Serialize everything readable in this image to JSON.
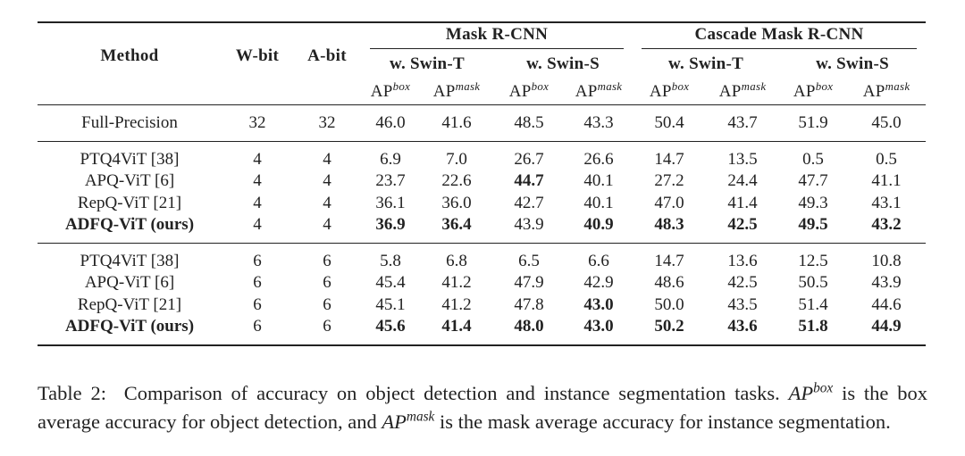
{
  "table": {
    "headers": {
      "method": "Method",
      "w_bit": "W-bit",
      "a_bit": "A-bit",
      "groups": [
        {
          "label": "Mask R-CNN",
          "backbones": [
            "w. Swin-T",
            "w. Swin-S"
          ]
        },
        {
          "label": "Cascade Mask R-CNN",
          "backbones": [
            "w. Swin-T",
            "w. Swin-S"
          ]
        }
      ],
      "metrics": [
        {
          "base": "AP",
          "sup": "box"
        },
        {
          "base": "AP",
          "sup": "mask"
        },
        {
          "base": "AP",
          "sup": "box"
        },
        {
          "base": "AP",
          "sup": "mask"
        },
        {
          "base": "AP",
          "sup": "box"
        },
        {
          "base": "AP",
          "sup": "mask"
        },
        {
          "base": "AP",
          "sup": "box"
        },
        {
          "base": "AP",
          "sup": "mask"
        }
      ]
    },
    "sections": [
      [
        {
          "cells": [
            "Full-Precision",
            "32",
            "32",
            "46.0",
            "41.6",
            "48.5",
            "43.3",
            "50.4",
            "43.7",
            "51.9",
            "45.0"
          ],
          "bold": []
        }
      ],
      [
        {
          "cells": [
            "PTQ4ViT [38]",
            "4",
            "4",
            "6.9",
            "7.0",
            "26.7",
            "26.6",
            "14.7",
            "13.5",
            "0.5",
            "0.5"
          ],
          "bold": []
        },
        {
          "cells": [
            "APQ-ViT [6]",
            "4",
            "4",
            "23.7",
            "22.6",
            "44.7",
            "40.1",
            "27.2",
            "24.4",
            "47.7",
            "41.1"
          ],
          "bold": [
            5
          ]
        },
        {
          "cells": [
            "RepQ-ViT [21]",
            "4",
            "4",
            "36.1",
            "36.0",
            "42.7",
            "40.1",
            "47.0",
            "41.4",
            "49.3",
            "43.1"
          ],
          "bold": []
        },
        {
          "cells": [
            "ADFQ-ViT (ours)",
            "4",
            "4",
            "36.9",
            "36.4",
            "43.9",
            "40.9",
            "48.3",
            "42.5",
            "49.5",
            "43.2"
          ],
          "bold": [
            0,
            3,
            4,
            6,
            7,
            8,
            9,
            10
          ]
        }
      ],
      [
        {
          "cells": [
            "PTQ4ViT [38]",
            "6",
            "6",
            "5.8",
            "6.8",
            "6.5",
            "6.6",
            "14.7",
            "13.6",
            "12.5",
            "10.8"
          ],
          "bold": []
        },
        {
          "cells": [
            "APQ-ViT [6]",
            "6",
            "6",
            "45.4",
            "41.2",
            "47.9",
            "42.9",
            "48.6",
            "42.5",
            "50.5",
            "43.9"
          ],
          "bold": []
        },
        {
          "cells": [
            "RepQ-ViT [21]",
            "6",
            "6",
            "45.1",
            "41.2",
            "47.8",
            "43.0",
            "50.0",
            "43.5",
            "51.4",
            "44.6"
          ],
          "bold": [
            6
          ]
        },
        {
          "cells": [
            "ADFQ-ViT (ours)",
            "6",
            "6",
            "45.6",
            "41.4",
            "48.0",
            "43.0",
            "50.2",
            "43.6",
            "51.8",
            "44.9"
          ],
          "bold": [
            0,
            3,
            4,
            5,
            6,
            7,
            8,
            9,
            10
          ]
        }
      ]
    ]
  },
  "caption": {
    "label": "Table 2:",
    "text": "Comparison of accuracy on object detection and instance segmentation tasks.",
    "term1": {
      "base": "AP",
      "sup": "box"
    },
    "text2": "is the box average accuracy for object detection, and",
    "term2": {
      "base": "AP",
      "sup": "mask"
    },
    "text3": "is the mask average accuracy for instance segmentation."
  }
}
